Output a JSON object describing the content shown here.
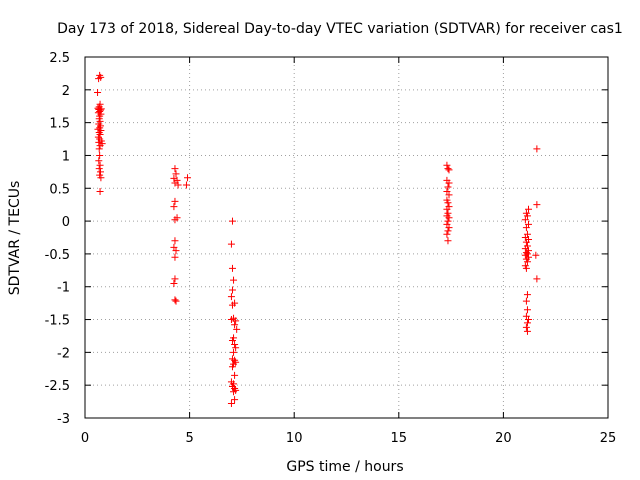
{
  "chart_data": {
    "type": "scatter",
    "title": "Day 173 of 2018, Sidereal Day-to-day VTEC variation (SDTVAR) for receiver cas1",
    "xlabel": "GPS time / hours",
    "ylabel": "SDTVAR / TECUs",
    "xlim": [
      0,
      25
    ],
    "ylim": [
      -3,
      2.5
    ],
    "xticks": [
      0,
      5,
      10,
      15,
      20,
      25
    ],
    "xtick_labels": [
      "0",
      "5",
      "10",
      "15",
      "20",
      "25"
    ],
    "yticks": [
      -3,
      -2.5,
      -2,
      -1.5,
      -1,
      -0.5,
      0,
      0.5,
      1,
      1.5,
      2,
      2.5
    ],
    "ytick_labels": [
      "-3",
      "-2.5",
      "-2",
      "-1.5",
      "-1",
      "-0.5",
      "0",
      "0.5",
      "1",
      "1.5",
      "2",
      "2.5"
    ],
    "grid": true,
    "marker": "+",
    "marker_color": "#ff0000",
    "series": [
      {
        "name": "SDTVAR",
        "points": [
          [
            0.7,
            2.22
          ],
          [
            0.75,
            2.19
          ],
          [
            0.65,
            2.17
          ],
          [
            0.6,
            1.96
          ],
          [
            0.72,
            1.78
          ],
          [
            0.68,
            1.74
          ],
          [
            0.62,
            1.72
          ],
          [
            0.78,
            1.71
          ],
          [
            0.66,
            1.7
          ],
          [
            0.74,
            1.69
          ],
          [
            0.7,
            1.67
          ],
          [
            0.64,
            1.65
          ],
          [
            0.76,
            1.63
          ],
          [
            0.7,
            1.6
          ],
          [
            0.68,
            1.56
          ],
          [
            0.72,
            1.52
          ],
          [
            0.66,
            1.48
          ],
          [
            0.74,
            1.45
          ],
          [
            0.7,
            1.42
          ],
          [
            0.62,
            1.4
          ],
          [
            0.76,
            1.38
          ],
          [
            0.68,
            1.35
          ],
          [
            0.72,
            1.32
          ],
          [
            0.64,
            1.28
          ],
          [
            0.7,
            1.25
          ],
          [
            0.78,
            1.22
          ],
          [
            0.66,
            1.2
          ],
          [
            0.82,
            1.18
          ],
          [
            0.72,
            1.15
          ],
          [
            0.68,
            1.1
          ],
          [
            0.7,
            1.0
          ],
          [
            0.66,
            0.92
          ],
          [
            0.72,
            0.85
          ],
          [
            0.68,
            0.8
          ],
          [
            0.74,
            0.75
          ],
          [
            0.7,
            0.7
          ],
          [
            0.76,
            0.66
          ],
          [
            0.72,
            0.45
          ],
          [
            4.3,
            0.8
          ],
          [
            4.35,
            0.72
          ],
          [
            4.25,
            0.65
          ],
          [
            4.4,
            0.62
          ],
          [
            4.3,
            0.58
          ],
          [
            4.45,
            0.55
          ],
          [
            4.9,
            0.66
          ],
          [
            4.85,
            0.55
          ],
          [
            4.3,
            0.3
          ],
          [
            4.25,
            0.22
          ],
          [
            4.4,
            0.05
          ],
          [
            4.3,
            0.02
          ],
          [
            4.3,
            -0.3
          ],
          [
            4.25,
            -0.4
          ],
          [
            4.35,
            -0.45
          ],
          [
            4.3,
            -0.55
          ],
          [
            4.3,
            -0.88
          ],
          [
            4.25,
            -0.95
          ],
          [
            4.3,
            -1.2
          ],
          [
            4.35,
            -1.22
          ],
          [
            7.05,
            0.0
          ],
          [
            7.0,
            -0.35
          ],
          [
            7.05,
            -0.72
          ],
          [
            7.1,
            -0.9
          ],
          [
            7.05,
            -1.05
          ],
          [
            7.0,
            -1.15
          ],
          [
            7.15,
            -1.25
          ],
          [
            7.05,
            -1.28
          ],
          [
            7.1,
            -1.48
          ],
          [
            7.0,
            -1.5
          ],
          [
            7.2,
            -1.52
          ],
          [
            7.15,
            -1.58
          ],
          [
            7.25,
            -1.65
          ],
          [
            7.1,
            -1.78
          ],
          [
            7.05,
            -1.82
          ],
          [
            7.15,
            -1.88
          ],
          [
            7.2,
            -1.93
          ],
          [
            7.1,
            -2.0
          ],
          [
            7.05,
            -2.1
          ],
          [
            7.15,
            -2.12
          ],
          [
            7.2,
            -2.15
          ],
          [
            7.1,
            -2.18
          ],
          [
            7.05,
            -2.22
          ],
          [
            7.15,
            -2.35
          ],
          [
            7.0,
            -2.45
          ],
          [
            7.1,
            -2.48
          ],
          [
            7.05,
            -2.52
          ],
          [
            7.15,
            -2.55
          ],
          [
            7.2,
            -2.58
          ],
          [
            7.1,
            -2.6
          ],
          [
            7.15,
            -2.72
          ],
          [
            7.0,
            -2.78
          ],
          [
            17.3,
            0.85
          ],
          [
            17.35,
            0.8
          ],
          [
            17.4,
            0.78
          ],
          [
            17.3,
            0.62
          ],
          [
            17.4,
            0.58
          ],
          [
            17.35,
            0.52
          ],
          [
            17.3,
            0.45
          ],
          [
            17.4,
            0.4
          ],
          [
            17.3,
            0.32
          ],
          [
            17.35,
            0.28
          ],
          [
            17.4,
            0.22
          ],
          [
            17.3,
            0.18
          ],
          [
            17.35,
            0.12
          ],
          [
            17.3,
            0.08
          ],
          [
            17.4,
            0.05
          ],
          [
            17.35,
            0.0
          ],
          [
            17.3,
            -0.05
          ],
          [
            17.4,
            -0.1
          ],
          [
            17.35,
            -0.15
          ],
          [
            17.3,
            -0.2
          ],
          [
            17.35,
            -0.3
          ],
          [
            21.2,
            0.18
          ],
          [
            21.1,
            0.12
          ],
          [
            21.15,
            0.08
          ],
          [
            21.05,
            0.02
          ],
          [
            21.2,
            -0.05
          ],
          [
            21.1,
            -0.1
          ],
          [
            21.15,
            -0.2
          ],
          [
            21.05,
            -0.25
          ],
          [
            21.2,
            -0.28
          ],
          [
            21.1,
            -0.32
          ],
          [
            21.15,
            -0.38
          ],
          [
            21.05,
            -0.42
          ],
          [
            21.2,
            -0.45
          ],
          [
            21.1,
            -0.48
          ],
          [
            21.15,
            -0.5
          ],
          [
            21.05,
            -0.52
          ],
          [
            21.2,
            -0.55
          ],
          [
            21.1,
            -0.58
          ],
          [
            21.15,
            -0.62
          ],
          [
            21.05,
            -0.68
          ],
          [
            21.1,
            -0.72
          ],
          [
            21.15,
            -1.12
          ],
          [
            21.1,
            -1.22
          ],
          [
            21.15,
            -1.35
          ],
          [
            21.1,
            -1.45
          ],
          [
            21.2,
            -1.5
          ],
          [
            21.15,
            -1.55
          ],
          [
            21.1,
            -1.62
          ],
          [
            21.15,
            -1.68
          ],
          [
            21.6,
            1.1
          ],
          [
            21.6,
            0.25
          ],
          [
            21.55,
            -0.52
          ],
          [
            21.6,
            -0.88
          ]
        ]
      }
    ]
  }
}
